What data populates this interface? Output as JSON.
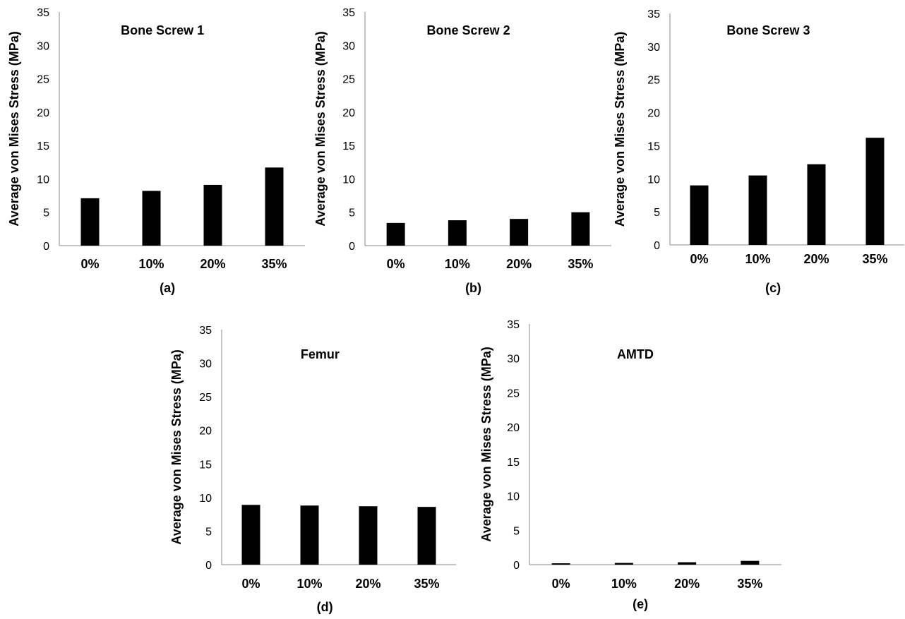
{
  "chart_data": [
    {
      "type": "bar",
      "title": "Bone Screw 1",
      "ylabel": "Average von Mises Stress (MPa)",
      "xlabel": "",
      "panel_label": "(a)",
      "categories": [
        "0%",
        "10%",
        "20%",
        "35%"
      ],
      "values": [
        7.1,
        8.2,
        9.1,
        11.7
      ],
      "ylim": [
        0,
        35
      ],
      "yticks": [
        "0",
        "5",
        "10",
        "15",
        "20",
        "25",
        "30",
        "35"
      ],
      "bar_color": "#000000",
      "grid": false,
      "legend": "none"
    },
    {
      "type": "bar",
      "title": "Bone Screw 2",
      "ylabel": "Average von Mises Stress (MPa)",
      "xlabel": "",
      "panel_label": "(b)",
      "categories": [
        "0%",
        "10%",
        "20%",
        "35%"
      ],
      "values": [
        3.4,
        3.8,
        4.0,
        5.0
      ],
      "ylim": [
        0,
        35
      ],
      "yticks": [
        "0",
        "5",
        "10",
        "15",
        "20",
        "25",
        "30",
        "35"
      ],
      "bar_color": "#000000",
      "grid": false,
      "legend": "none"
    },
    {
      "type": "bar",
      "title": "Bone Screw 3",
      "ylabel": "Average von Mises Stress (MPa)",
      "xlabel": "",
      "panel_label": "(c)",
      "categories": [
        "0%",
        "10%",
        "20%",
        "35%"
      ],
      "values": [
        9.0,
        10.5,
        12.2,
        16.2
      ],
      "ylim": [
        0,
        35
      ],
      "yticks": [
        "0",
        "5",
        "10",
        "15",
        "20",
        "25",
        "30",
        "35"
      ],
      "bar_color": "#000000",
      "grid": false,
      "legend": "none"
    },
    {
      "type": "bar",
      "title": "Femur",
      "ylabel": "Average von Mises Stress (MPa)",
      "xlabel": "",
      "panel_label": "(d)",
      "categories": [
        "0%",
        "10%",
        "20%",
        "35%"
      ],
      "values": [
        8.9,
        8.8,
        8.7,
        8.6
      ],
      "ylim": [
        0,
        35
      ],
      "yticks": [
        "0",
        "5",
        "10",
        "15",
        "20",
        "25",
        "30",
        "35"
      ],
      "bar_color": "#000000",
      "grid": false,
      "legend": "none"
    },
    {
      "type": "bar",
      "title": "AMTD",
      "ylabel": "Average von Mises Stress (MPa)",
      "xlabel": "",
      "panel_label": "(e)",
      "categories": [
        "0%",
        "10%",
        "20%",
        "35%"
      ],
      "values": [
        0.2,
        0.25,
        0.35,
        0.55
      ],
      "ylim": [
        0,
        35
      ],
      "yticks": [
        "0",
        "5",
        "10",
        "15",
        "20",
        "25",
        "30",
        "35"
      ],
      "bar_color": "#000000",
      "grid": false,
      "legend": "none"
    }
  ]
}
